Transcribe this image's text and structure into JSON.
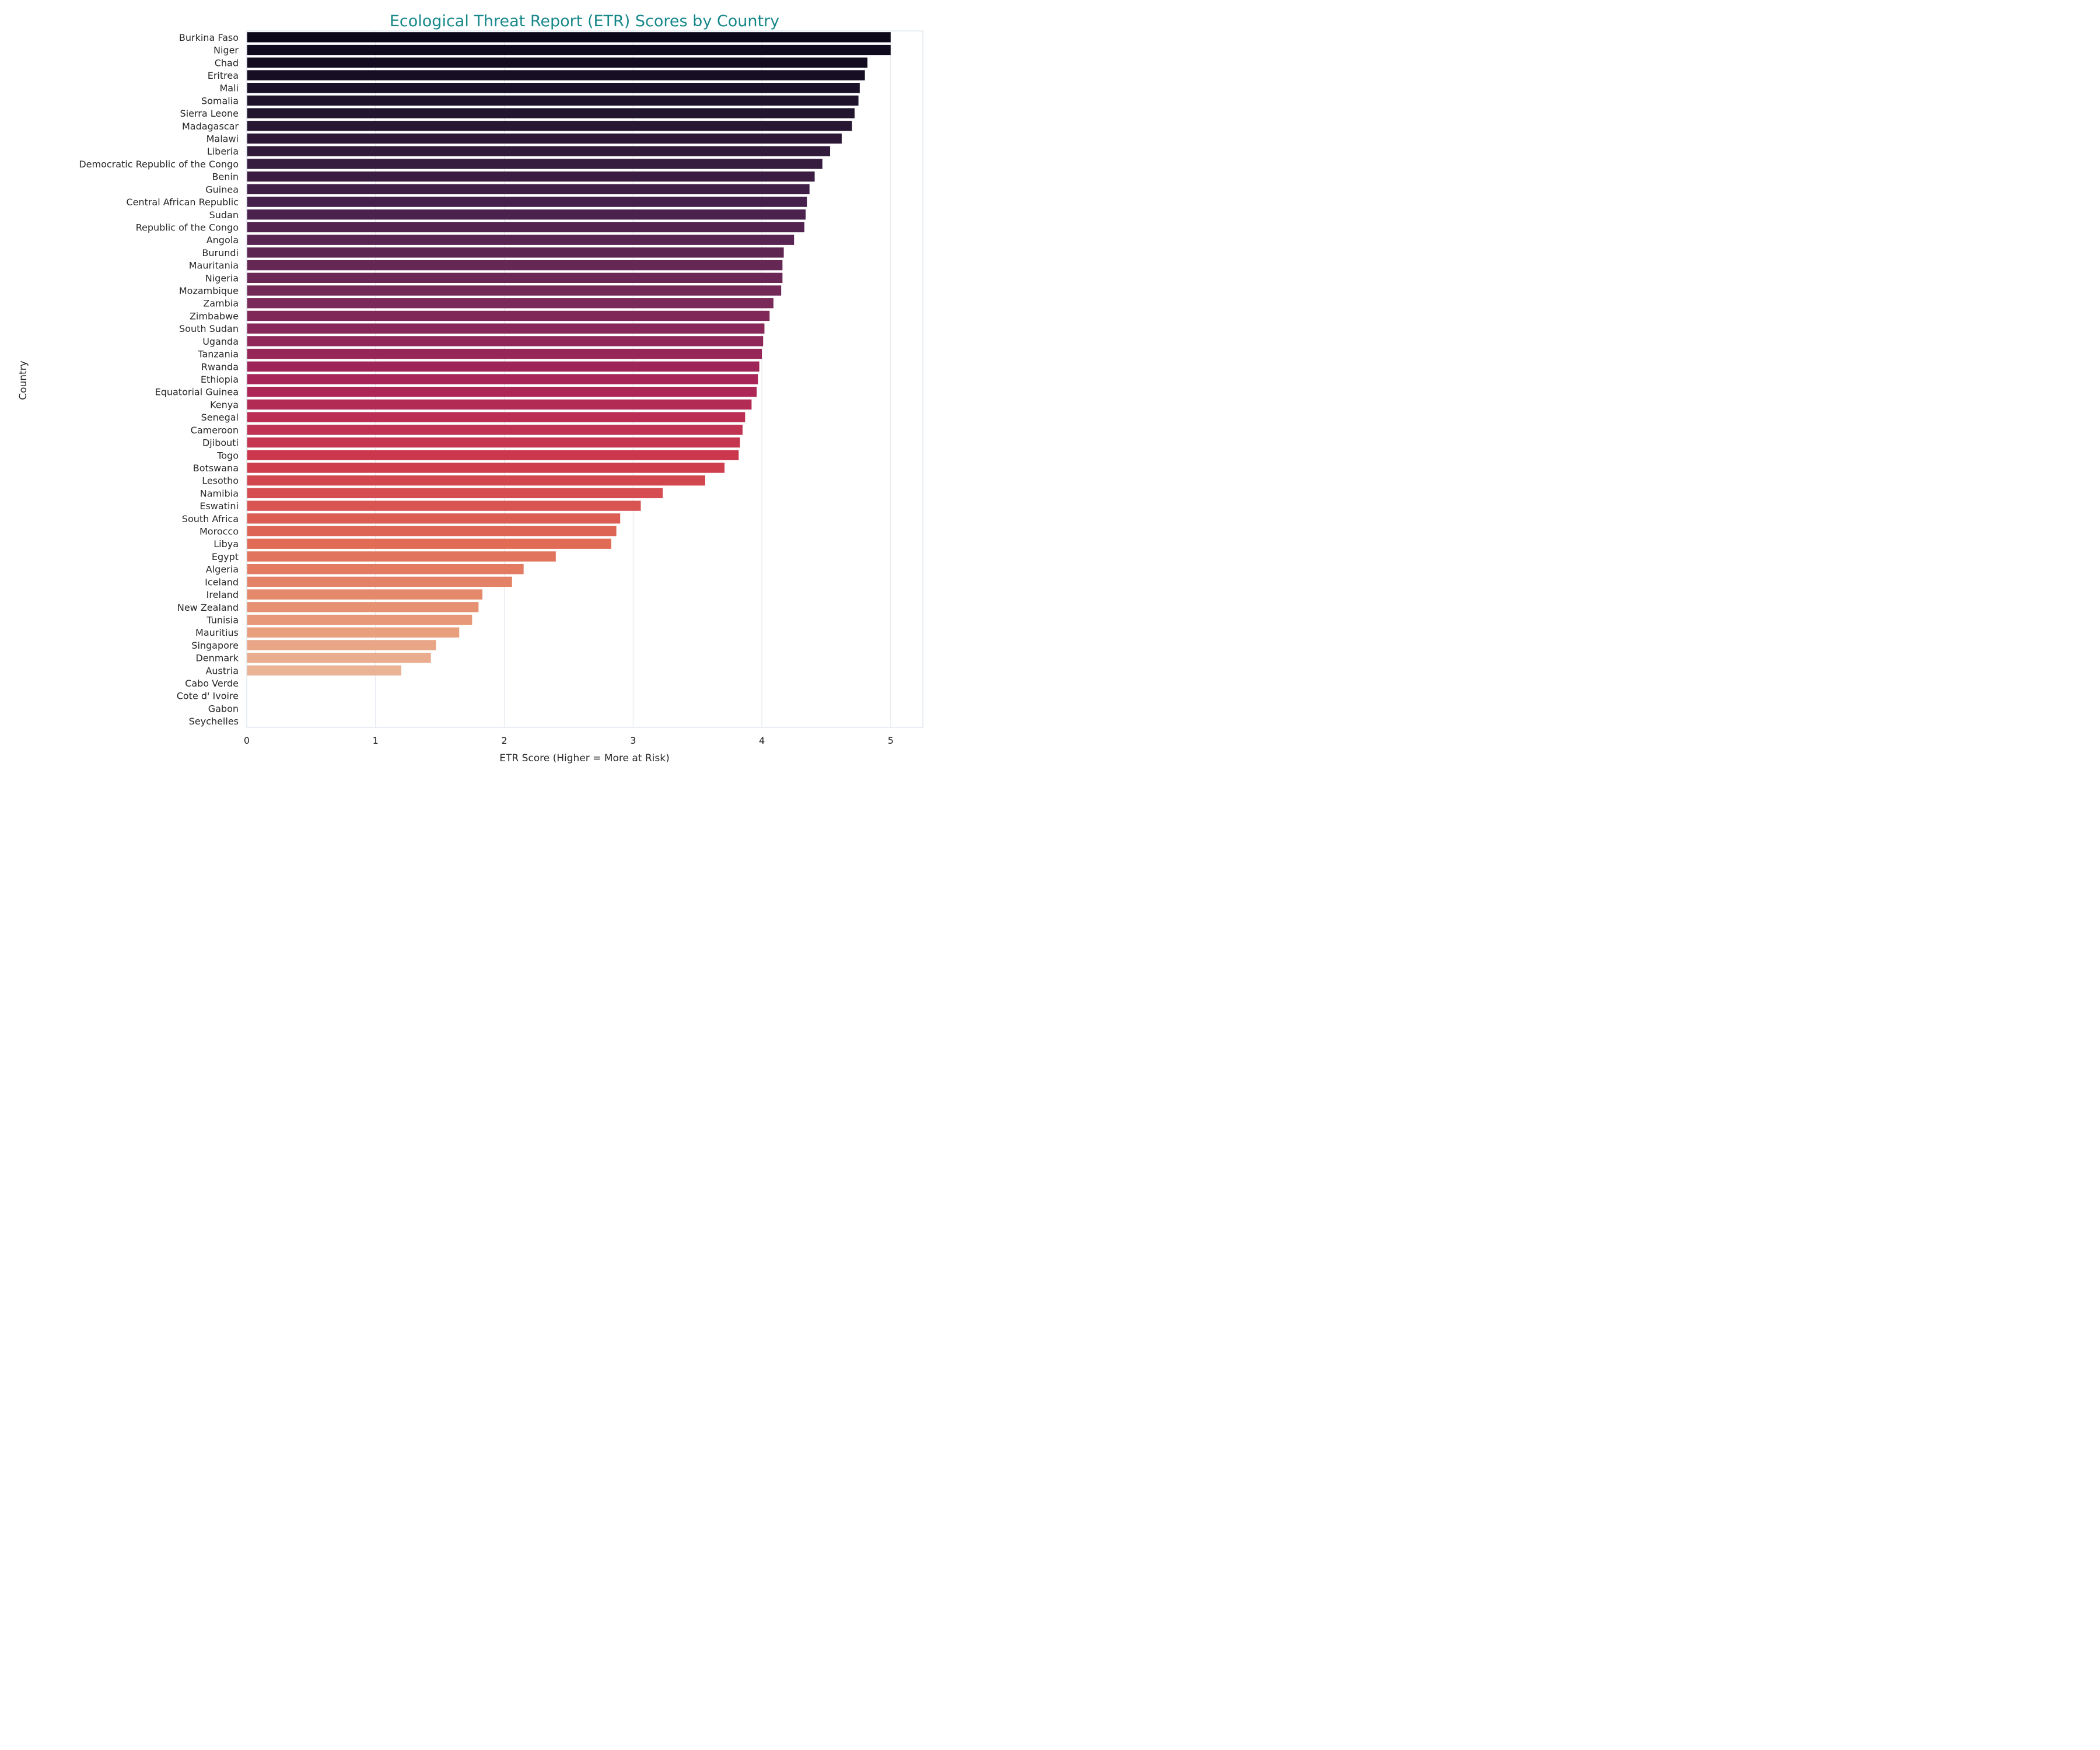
{
  "chart_data": {
    "type": "bar",
    "orientation": "horizontal",
    "title": "Ecological Threat Report (ETR) Scores by Country",
    "xlabel": "ETR Score (Higher = More at Risk)",
    "ylabel": "Country",
    "xlim": [
      0,
      5.25
    ],
    "xticks": [
      0,
      1,
      2,
      3,
      4,
      5
    ],
    "grid": "x",
    "legend": "none",
    "colors": {
      "title": "#17878a",
      "spine": "#dfe6ee",
      "grid": "#e4e9ef",
      "palette": "rocket (dark to light)"
    },
    "categories": [
      "Burkina Faso",
      "Niger",
      "Chad",
      "Eritrea",
      "Mali",
      "Somalia",
      "Sierra Leone",
      "Madagascar",
      "Malawi",
      "Liberia",
      "Democratic Republic of the Congo",
      "Benin",
      "Guinea",
      "Central African Republic",
      "Sudan",
      "Republic of the Congo",
      "Angola",
      "Burundi",
      "Mauritania",
      "Nigeria",
      "Mozambique",
      "Zambia",
      "Zimbabwe",
      "South Sudan",
      "Uganda",
      "Tanzania",
      "Rwanda",
      "Ethiopia",
      "Equatorial Guinea",
      "Kenya",
      "Senegal",
      "Cameroon",
      "Djibouti",
      "Togo",
      "Botswana",
      "Lesotho",
      "Namibia",
      "Eswatini",
      "South Africa",
      "Morocco",
      "Libya",
      "Egypt",
      "Algeria",
      "Iceland",
      "Ireland",
      "New Zealand",
      "Tunisia",
      "Mauritius",
      "Singapore",
      "Denmark",
      "Austria",
      "Cabo Verde",
      "Cote d' Ivoire",
      "Gabon",
      "Seychelles"
    ],
    "values": [
      5.0,
      5.0,
      4.82,
      4.8,
      4.76,
      4.75,
      4.72,
      4.7,
      4.62,
      4.53,
      4.47,
      4.41,
      4.37,
      4.35,
      4.34,
      4.33,
      4.25,
      4.17,
      4.16,
      4.16,
      4.15,
      4.09,
      4.06,
      4.02,
      4.01,
      4.0,
      3.98,
      3.97,
      3.96,
      3.92,
      3.87,
      3.85,
      3.83,
      3.82,
      3.71,
      3.56,
      3.23,
      3.06,
      2.9,
      2.87,
      2.83,
      2.4,
      2.15,
      2.06,
      1.83,
      1.8,
      1.75,
      1.65,
      1.47,
      1.43,
      1.2,
      null,
      null,
      null,
      null
    ]
  }
}
